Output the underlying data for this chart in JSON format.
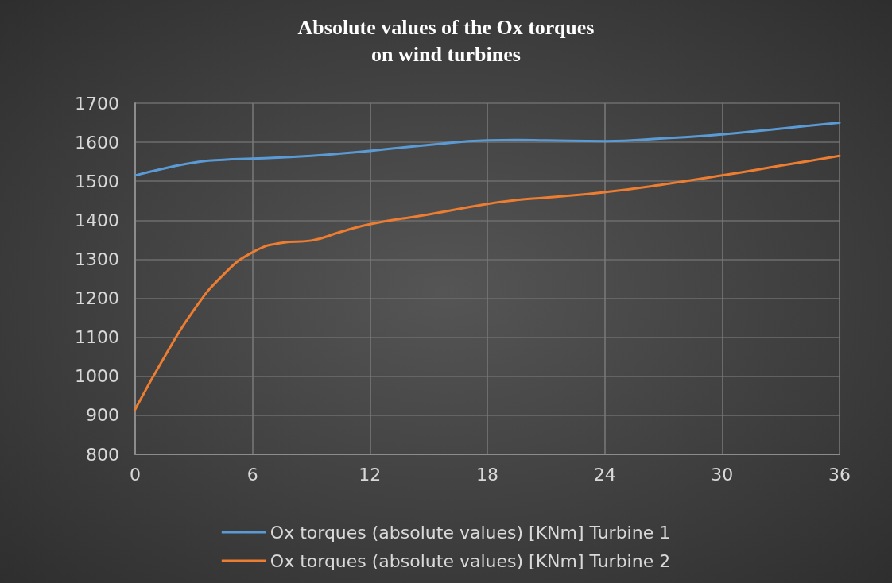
{
  "chart_data": {
    "type": "line",
    "title": "Absolute values of the Ox torques\non wind turbines",
    "x": [
      0,
      1.5,
      3,
      4.5,
      6,
      7.5,
      9,
      10.5,
      12,
      15,
      18,
      19.5,
      21,
      24,
      27,
      30,
      33,
      36
    ],
    "series": [
      {
        "name": "Ox torques (absolute values) [KNm] Turbine 1",
        "color": "#5b9bd5",
        "values": [
          1515,
          1533,
          1548,
          1555,
          1558,
          1561,
          1565,
          1571,
          1578,
          1593,
          1605,
          1606,
          1605,
          1603,
          1610,
          1620,
          1635,
          1650
        ]
      },
      {
        "name": "Ox torques (absolute values) [KNm] Turbine 2",
        "color": "#ed7d31",
        "values": [
          915,
          1050,
          1170,
          1260,
          1318,
          1342,
          1348,
          1370,
          1390,
          1415,
          1442,
          1452,
          1458,
          1472,
          1492,
          1515,
          1540,
          1565
        ]
      }
    ],
    "xlim": [
      0,
      36
    ],
    "xticks": [
      0,
      6,
      12,
      18,
      24,
      30,
      36
    ],
    "ylim": [
      800,
      1700
    ],
    "yticks": [
      800,
      900,
      1000,
      1100,
      1200,
      1300,
      1400,
      1500,
      1600,
      1700
    ],
    "grid": true,
    "legend": "bottom",
    "marker": "none",
    "line_style": "solid"
  }
}
